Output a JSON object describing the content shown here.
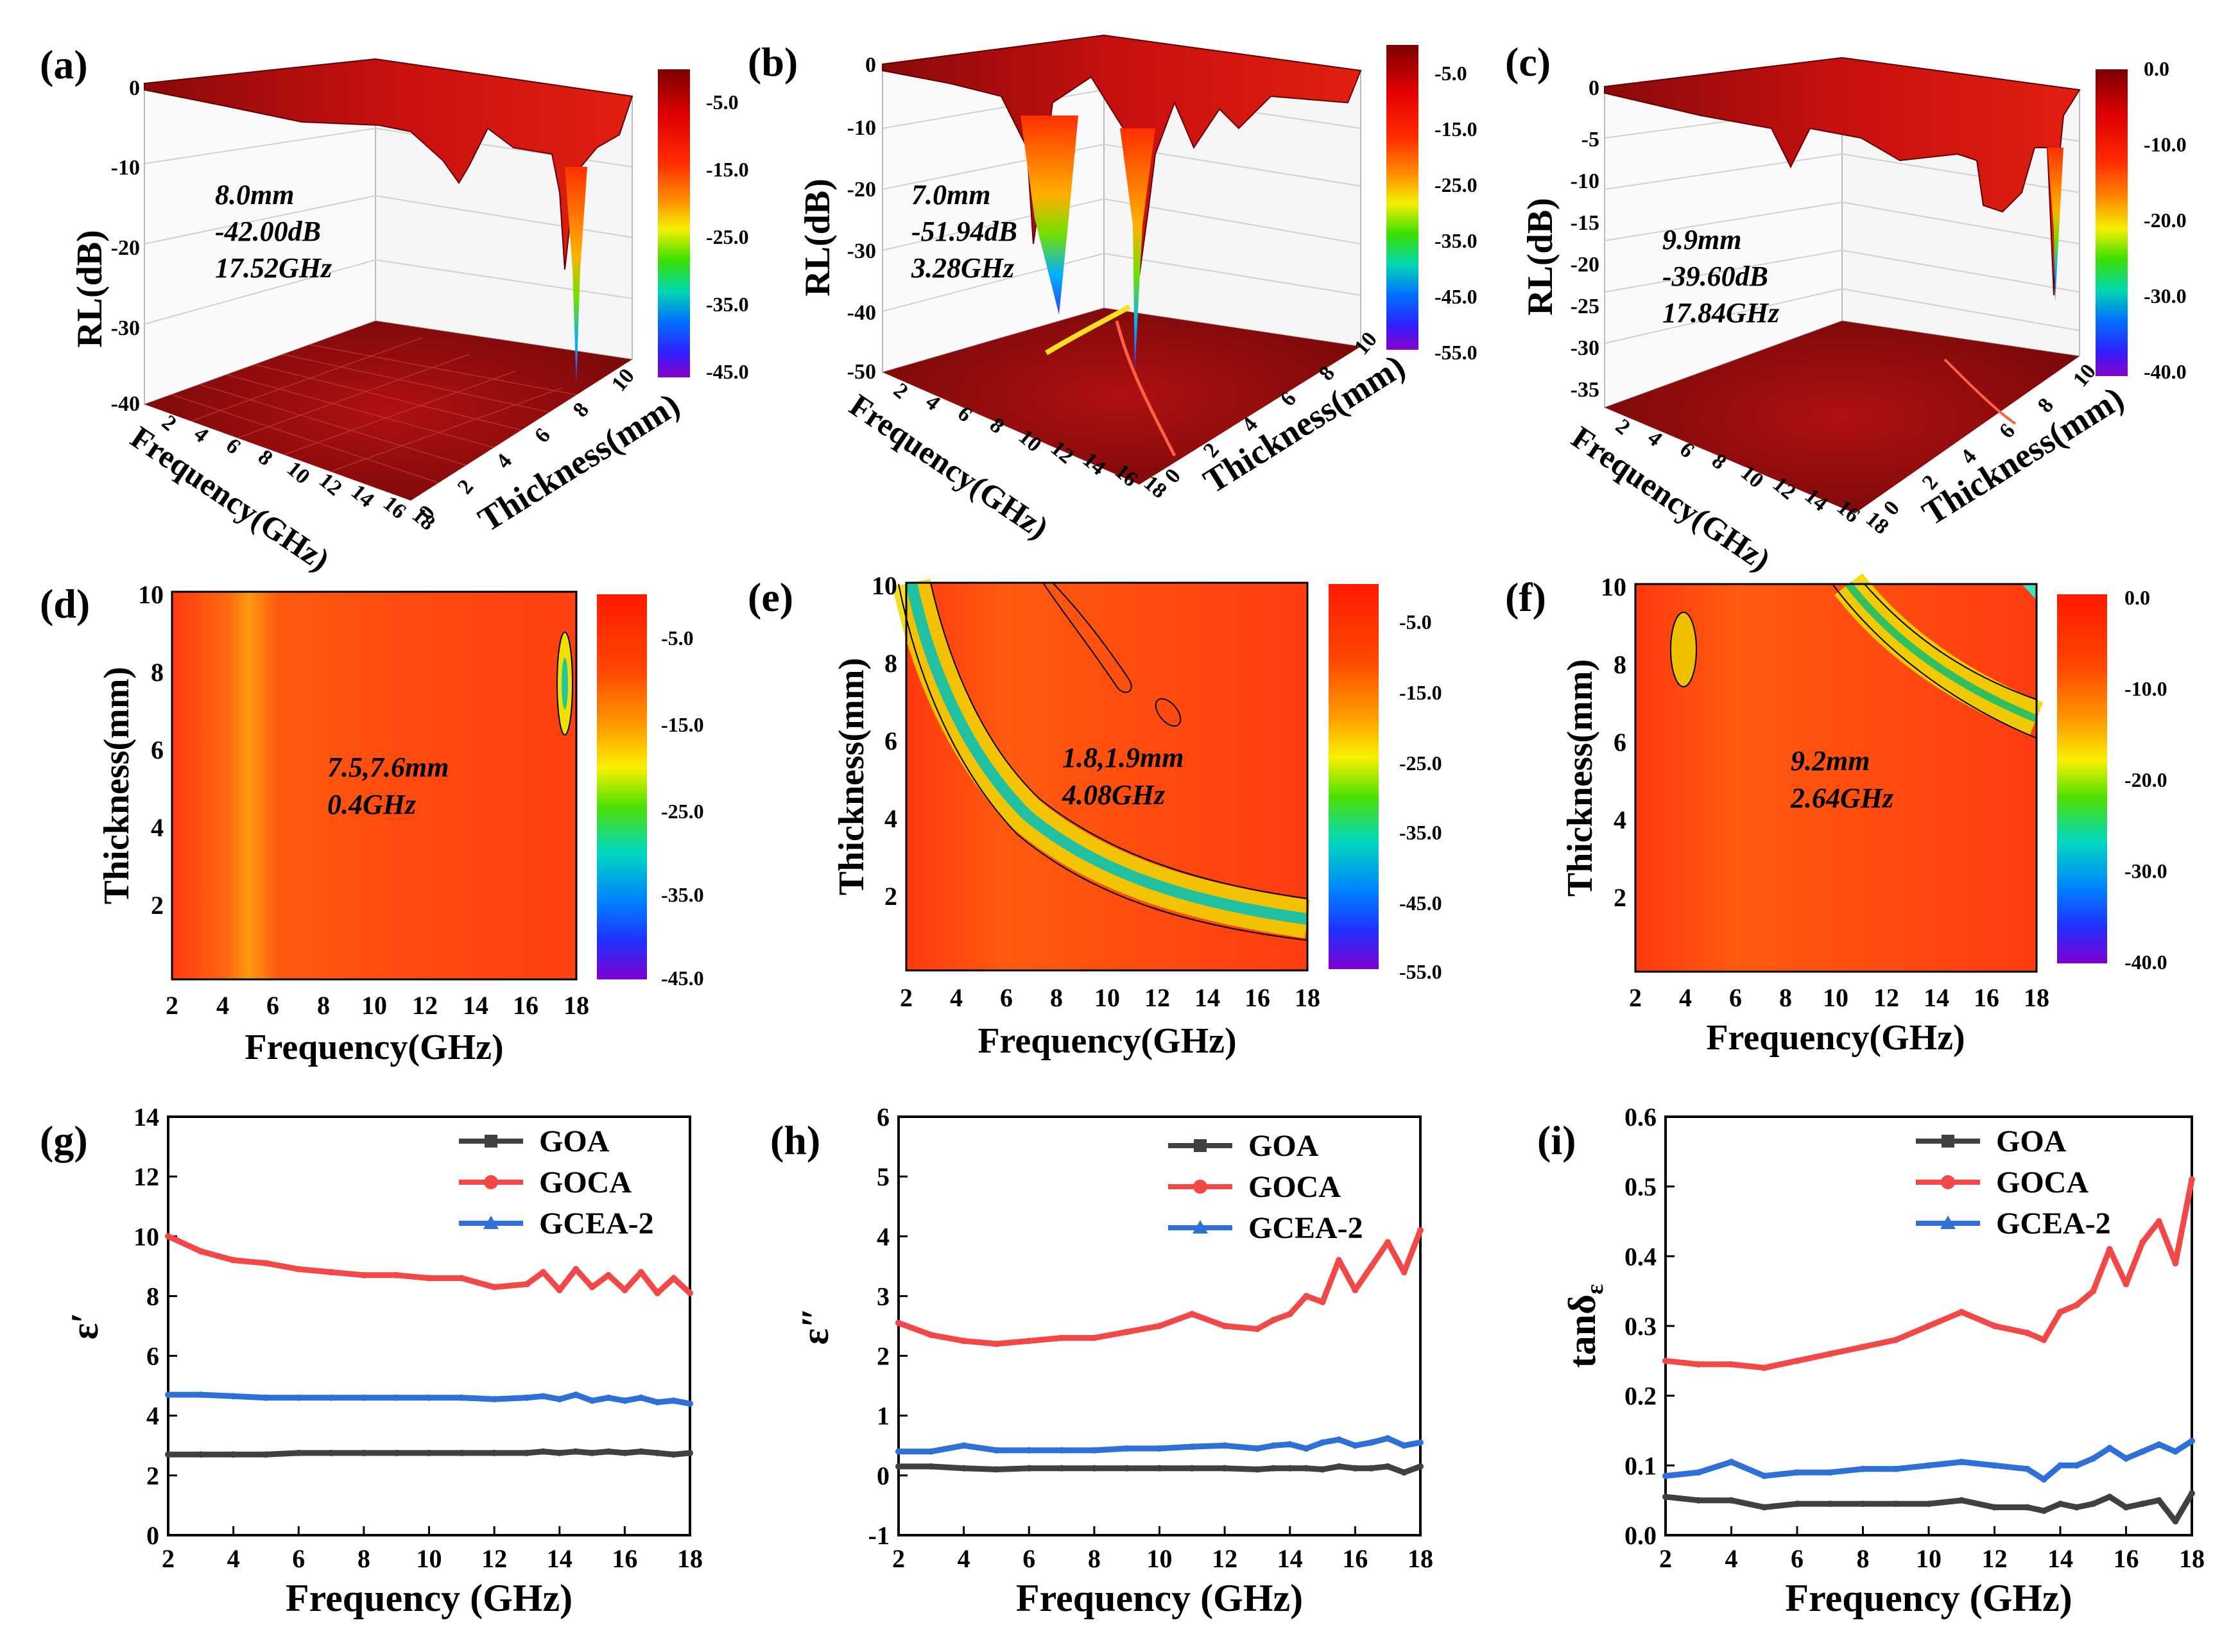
{
  "figure_labels": [
    "(a)",
    "(b)",
    "(c)",
    "(d)",
    "(e)",
    "(f)",
    "(g)",
    "(h)",
    "(i)"
  ],
  "colors": {
    "GOA": "#404040",
    "GOCA": "#f24848",
    "GCEA-2": "#2f6fd8",
    "background": "#ffffff"
  },
  "surfaces": [
    {
      "label": "(a)",
      "z_title": "RL(dB)",
      "z_ticks": [
        "0",
        "-10",
        "-20",
        "-30",
        "-40"
      ],
      "freq_title": "Frequency(GHz)",
      "freq_ticks": [
        "2",
        "4",
        "6",
        "8",
        "10",
        "12",
        "14",
        "16",
        "18"
      ],
      "thick_title": "Thickness(mm)",
      "thick_ticks": [
        "0",
        "2",
        "4",
        "6",
        "8",
        "10"
      ],
      "annotation": [
        "8.0mm",
        "-42.00dB",
        "17.52GHz"
      ],
      "colorbar_ticks": [
        "-5.0",
        "-15.0",
        "-25.0",
        "-35.0",
        "-45.0"
      ],
      "min_rl": -42.0
    },
    {
      "label": "(b)",
      "z_title": "RL(dB)",
      "z_ticks": [
        "0",
        "-10",
        "-20",
        "-30",
        "-40",
        "-50"
      ],
      "freq_title": "Frequency(GHz)",
      "freq_ticks": [
        "2",
        "4",
        "6",
        "8",
        "10",
        "12",
        "14",
        "16",
        "18"
      ],
      "thick_title": "Thickness(mm)",
      "thick_ticks": [
        "0",
        "2",
        "4",
        "6",
        "8",
        "10"
      ],
      "annotation": [
        "7.0mm",
        "-51.94dB",
        "3.28GHz"
      ],
      "colorbar_ticks": [
        "-5.0",
        "-15.0",
        "-25.0",
        "-35.0",
        "-45.0",
        "-55.0"
      ],
      "min_rl": -51.94
    },
    {
      "label": "(c)",
      "z_title": "RL(dB)",
      "z_ticks": [
        "0",
        "-5",
        "-10",
        "-15",
        "-20",
        "-25",
        "-30",
        "-35"
      ],
      "freq_title": "Frequency(GHz)",
      "freq_ticks": [
        "2",
        "4",
        "6",
        "8",
        "10",
        "12",
        "14",
        "16",
        "18"
      ],
      "thick_title": "Thickness(mm)",
      "thick_ticks": [
        "0",
        "2",
        "4",
        "6",
        "8",
        "10"
      ],
      "annotation": [
        "9.9mm",
        "-39.60dB",
        "17.84GHz"
      ],
      "colorbar_ticks": [
        "0.0",
        "-10.0",
        "-20.0",
        "-30.0",
        "-40.0"
      ],
      "min_rl": -39.6
    }
  ],
  "maps": [
    {
      "label": "(d)",
      "x_title": "Frequency(GHz)",
      "y_title": "Thickness(mm)",
      "x_ticks": [
        "2",
        "4",
        "6",
        "8",
        "10",
        "12",
        "14",
        "16",
        "18"
      ],
      "y_ticks": [
        "2",
        "4",
        "6",
        "8",
        "10"
      ],
      "annotation": [
        "7.5,7.6mm",
        "0.4GHz"
      ],
      "colorbar_ticks": [
        "-5.0",
        "-15.0",
        "-25.0",
        "-35.0",
        "-45.0"
      ]
    },
    {
      "label": "(e)",
      "x_title": "Frequency(GHz)",
      "y_title": "Thickness(mm)",
      "x_ticks": [
        "2",
        "4",
        "6",
        "8",
        "10",
        "12",
        "14",
        "16",
        "18"
      ],
      "y_ticks": [
        "2",
        "4",
        "6",
        "8",
        "10"
      ],
      "annotation": [
        "1.8,1.9mm",
        "4.08GHz"
      ],
      "colorbar_ticks": [
        "-5.0",
        "-15.0",
        "-25.0",
        "-35.0",
        "-45.0",
        "-55.0"
      ]
    },
    {
      "label": "(f)",
      "x_title": "Frequency(GHz)",
      "y_title": "Thickness(mm)",
      "x_ticks": [
        "2",
        "4",
        "6",
        "8",
        "10",
        "12",
        "14",
        "16",
        "18"
      ],
      "y_ticks": [
        "2",
        "4",
        "6",
        "8",
        "10"
      ],
      "annotation": [
        "9.2mm",
        "2.64GHz"
      ],
      "colorbar_ticks": [
        "0.0",
        "-10.0",
        "-20.0",
        "-30.0",
        "-40.0"
      ]
    }
  ],
  "chart_data": [
    {
      "type": "line",
      "panel": "(g)",
      "title": "",
      "xlabel": "Frequency (GHz)",
      "ylabel": "ε′",
      "xlim": [
        2,
        18
      ],
      "ylim": [
        0,
        14
      ],
      "x_ticks": [
        "2",
        "4",
        "6",
        "8",
        "10",
        "12",
        "14",
        "16",
        "18"
      ],
      "y_ticks": [
        "0",
        "2",
        "4",
        "6",
        "8",
        "10",
        "12",
        "14"
      ],
      "legend_position": "top-right",
      "x": [
        2,
        3,
        4,
        5,
        6,
        7,
        8,
        9,
        10,
        11,
        12,
        13,
        13.5,
        14,
        14.5,
        15,
        15.5,
        16,
        16.5,
        17,
        17.5,
        18
      ],
      "series": [
        {
          "name": "GOA",
          "values": [
            2.7,
            2.7,
            2.7,
            2.7,
            2.75,
            2.75,
            2.75,
            2.75,
            2.75,
            2.75,
            2.75,
            2.75,
            2.8,
            2.75,
            2.8,
            2.75,
            2.8,
            2.75,
            2.8,
            2.75,
            2.7,
            2.75
          ]
        },
        {
          "name": "GOCA",
          "values": [
            10.0,
            9.5,
            9.2,
            9.1,
            8.9,
            8.8,
            8.7,
            8.7,
            8.6,
            8.6,
            8.3,
            8.4,
            8.8,
            8.2,
            8.9,
            8.3,
            8.7,
            8.2,
            8.8,
            8.1,
            8.6,
            8.1
          ]
        },
        {
          "name": "GCEA-2",
          "values": [
            4.7,
            4.7,
            4.65,
            4.6,
            4.6,
            4.6,
            4.6,
            4.6,
            4.6,
            4.6,
            4.55,
            4.6,
            4.65,
            4.55,
            4.7,
            4.5,
            4.6,
            4.5,
            4.6,
            4.45,
            4.5,
            4.4
          ]
        }
      ]
    },
    {
      "type": "line",
      "panel": "(h)",
      "title": "",
      "xlabel": "Frequency (GHz)",
      "ylabel": "ε″",
      "xlim": [
        2,
        18
      ],
      "ylim": [
        -1,
        6
      ],
      "x_ticks": [
        "2",
        "4",
        "6",
        "8",
        "10",
        "12",
        "14",
        "16",
        "18"
      ],
      "y_ticks": [
        "-1",
        "0",
        "1",
        "2",
        "3",
        "4",
        "5",
        "6"
      ],
      "legend_position": "top-right",
      "x": [
        2,
        3,
        4,
        5,
        6,
        7,
        8,
        9,
        10,
        11,
        12,
        13,
        13.5,
        14,
        14.5,
        15,
        15.5,
        16,
        16.5,
        17,
        17.5,
        18
      ],
      "series": [
        {
          "name": "GOA",
          "values": [
            0.15,
            0.15,
            0.12,
            0.1,
            0.12,
            0.12,
            0.12,
            0.12,
            0.12,
            0.12,
            0.12,
            0.1,
            0.12,
            0.12,
            0.12,
            0.1,
            0.15,
            0.12,
            0.12,
            0.15,
            0.05,
            0.15
          ]
        },
        {
          "name": "GOCA",
          "values": [
            2.55,
            2.35,
            2.25,
            2.2,
            2.25,
            2.3,
            2.3,
            2.4,
            2.5,
            2.7,
            2.5,
            2.45,
            2.6,
            2.7,
            3.0,
            2.9,
            3.6,
            3.1,
            3.5,
            3.9,
            3.4,
            4.1
          ]
        },
        {
          "name": "GCEA-2",
          "values": [
            0.4,
            0.4,
            0.5,
            0.42,
            0.42,
            0.42,
            0.42,
            0.45,
            0.45,
            0.48,
            0.5,
            0.45,
            0.5,
            0.52,
            0.45,
            0.55,
            0.6,
            0.5,
            0.55,
            0.62,
            0.5,
            0.55
          ]
        }
      ]
    },
    {
      "type": "line",
      "panel": "(i)",
      "title": "",
      "xlabel": "Frequency (GHz)",
      "ylabel": "tanδε",
      "ylabel_main": "tanδ",
      "ylabel_sub": "ε",
      "xlim": [
        2,
        18
      ],
      "ylim": [
        0,
        0.6
      ],
      "x_ticks": [
        "2",
        "4",
        "6",
        "8",
        "10",
        "12",
        "14",
        "16",
        "18"
      ],
      "y_ticks": [
        "0.0",
        "0.1",
        "0.2",
        "0.3",
        "0.4",
        "0.5",
        "0.6"
      ],
      "legend_position": "top-right",
      "x": [
        2,
        3,
        4,
        5,
        6,
        7,
        8,
        9,
        10,
        11,
        12,
        13,
        13.5,
        14,
        14.5,
        15,
        15.5,
        16,
        16.5,
        17,
        17.5,
        18
      ],
      "series": [
        {
          "name": "GOA",
          "values": [
            0.055,
            0.05,
            0.05,
            0.04,
            0.045,
            0.045,
            0.045,
            0.045,
            0.045,
            0.05,
            0.04,
            0.04,
            0.035,
            0.045,
            0.04,
            0.045,
            0.055,
            0.04,
            0.045,
            0.05,
            0.02,
            0.06
          ]
        },
        {
          "name": "GOCA",
          "values": [
            0.25,
            0.245,
            0.245,
            0.24,
            0.25,
            0.26,
            0.27,
            0.28,
            0.3,
            0.32,
            0.3,
            0.29,
            0.28,
            0.32,
            0.33,
            0.35,
            0.41,
            0.36,
            0.42,
            0.45,
            0.39,
            0.51
          ]
        },
        {
          "name": "GCEA-2",
          "values": [
            0.085,
            0.09,
            0.105,
            0.085,
            0.09,
            0.09,
            0.095,
            0.095,
            0.1,
            0.105,
            0.1,
            0.095,
            0.08,
            0.1,
            0.1,
            0.11,
            0.125,
            0.11,
            0.12,
            0.13,
            0.12,
            0.135
          ]
        }
      ]
    }
  ]
}
